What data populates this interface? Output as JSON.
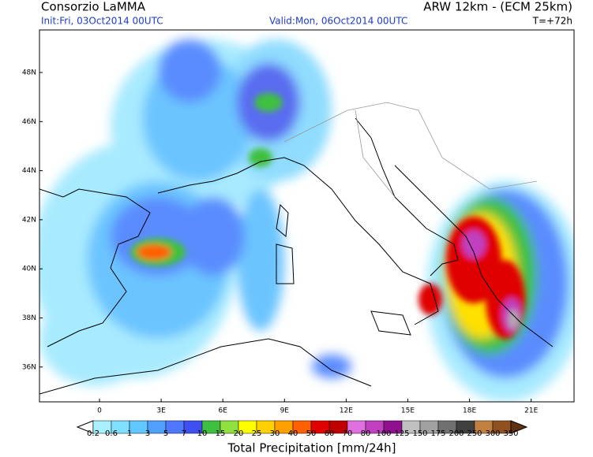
{
  "header": {
    "title": "Consorzio LaMMA",
    "model": "ARW 12km - (ECM 25km)",
    "init": "Init:Fri, 03Oct2014 00UTC",
    "valid": "Valid:Mon, 06Oct2014 00UTC",
    "lead": "T=+72h"
  },
  "map": {
    "lat_labels": [
      "48N",
      "46N",
      "44N",
      "42N",
      "40N",
      "38N",
      "36N"
    ],
    "lon_labels": [
      "0",
      "3E",
      "6E",
      "9E",
      "12E",
      "15E",
      "18E",
      "21E"
    ]
  },
  "colorbar": {
    "labels": [
      "0.2",
      "0.6",
      "1",
      "3",
      "5",
      "7",
      "10",
      "15",
      "20",
      "25",
      "30",
      "40",
      "50",
      "60",
      "70",
      "80",
      "100",
      "125",
      "150",
      "175",
      "200",
      "250",
      "300",
      "350"
    ],
    "title": "Total Precipitation [mm/24h]"
  }
}
